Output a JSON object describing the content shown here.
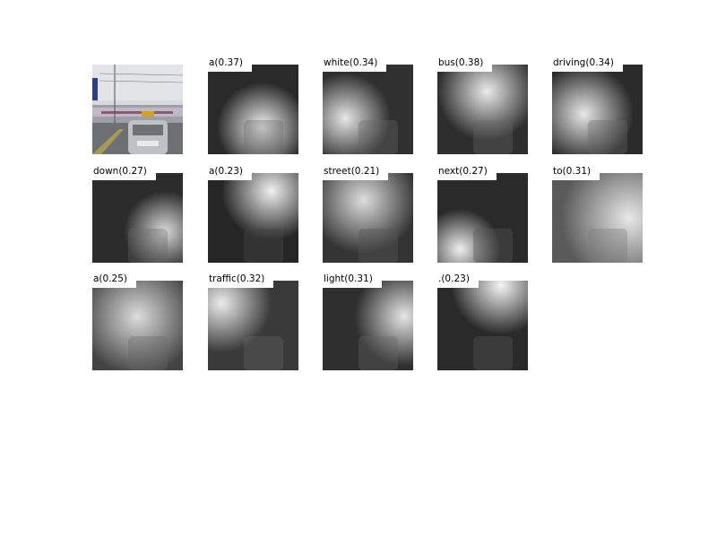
{
  "original_image": {
    "label": ""
  },
  "attention_maps": [
    {
      "label": "a(0.37)"
    },
    {
      "label": "white(0.34)"
    },
    {
      "label": "bus(0.38)"
    },
    {
      "label": "driving(0.34)"
    },
    {
      "label": "down(0.27)"
    },
    {
      "label": "a(0.23)"
    },
    {
      "label": "street(0.21)"
    },
    {
      "label": "next(0.27)"
    },
    {
      "label": "to(0.31)"
    },
    {
      "label": "a(0.25)"
    },
    {
      "label": "traffic(0.32)"
    },
    {
      "label": "light(0.31)"
    },
    {
      "label": ".(0.23)"
    }
  ]
}
